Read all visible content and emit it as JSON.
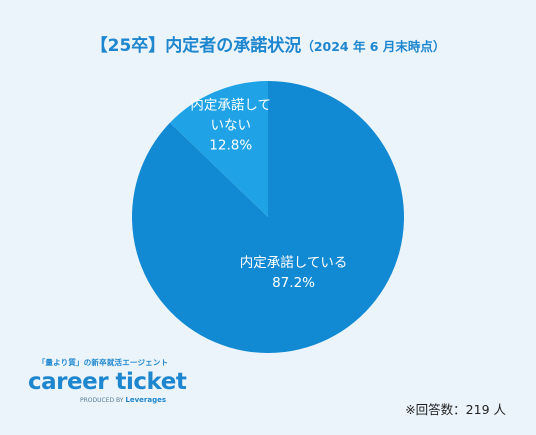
{
  "title": {
    "main": "【25卒】内定者の承諾状況",
    "sub": "（2024 年 6 月末時点）"
  },
  "colors": {
    "background": "#ebf4fb",
    "accent": "#1d86cf",
    "slice_main": "#1189d3",
    "slice_minor": "#1fa3e6"
  },
  "chart_data": {
    "type": "pie",
    "title": "【25卒】内定者の承諾状況（2024 年 6 月末時点）",
    "slices": [
      {
        "label": "内定承諾している",
        "value": 87.2,
        "value_label": "87.2%",
        "color": "#1189d3"
      },
      {
        "label": "内定承諾していない",
        "value": 12.8,
        "value_label": "12.8%",
        "color": "#1fa3e6"
      }
    ]
  },
  "brand": {
    "tagline": "「量より質」の新卒就活エージェント",
    "logo": "career ticket",
    "produced_by": "PRODUCED BY",
    "company": "Leverages"
  },
  "note": "※回答数：219 人"
}
